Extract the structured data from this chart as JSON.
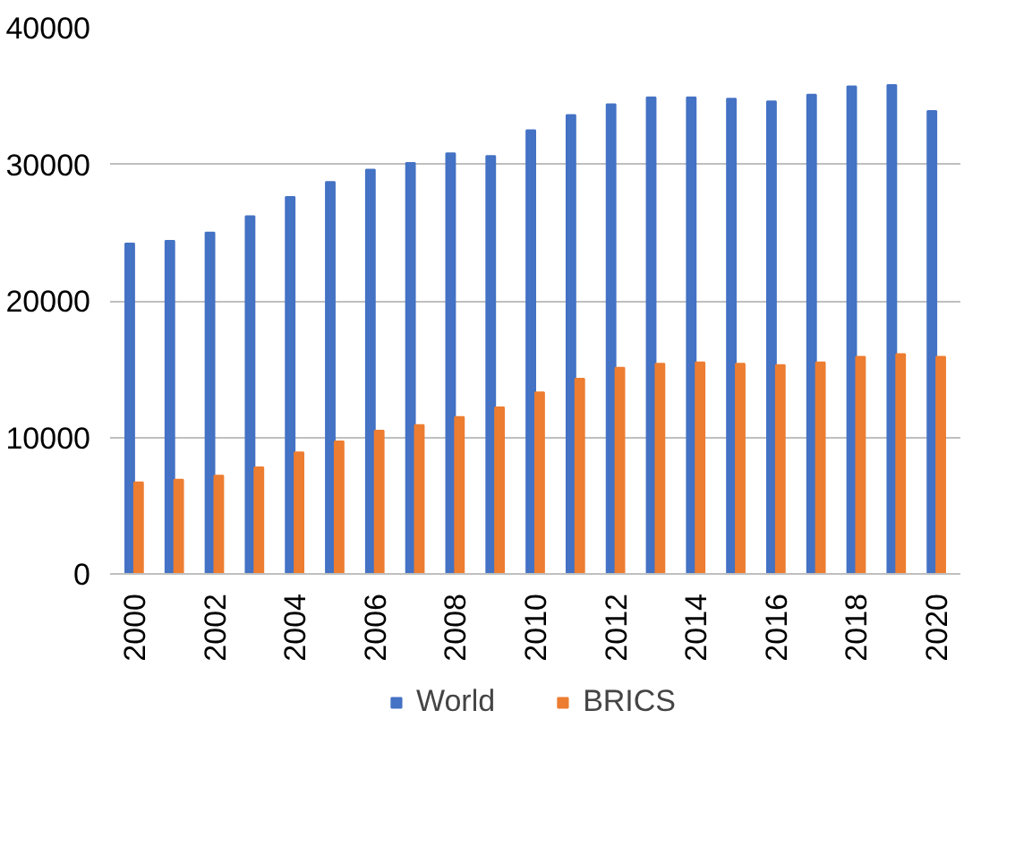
{
  "chart_data": {
    "type": "bar",
    "categories": [
      "2000",
      null,
      "2002",
      null,
      "2004",
      null,
      "2006",
      null,
      "2008",
      null,
      "2010",
      null,
      "2012",
      null,
      "2014",
      null,
      "2016",
      null,
      "2018",
      null,
      "2020"
    ],
    "series": [
      {
        "name": "World",
        "color": "#4472c4",
        "values": [
          24200,
          24400,
          25000,
          26200,
          27600,
          28700,
          29600,
          30100,
          30800,
          30600,
          32500,
          33600,
          34400,
          34900,
          34900,
          34800,
          34600,
          35100,
          35700,
          35800,
          33900
        ]
      },
      {
        "name": "BRICS",
        "color": "#ed7d31",
        "values": [
          6700,
          6900,
          7200,
          7800,
          8900,
          9700,
          10500,
          10900,
          11500,
          12200,
          13300,
          14300,
          15100,
          15400,
          15500,
          15400,
          15300,
          15500,
          15900,
          16100,
          15900
        ]
      }
    ],
    "ylim": [
      0,
      40000
    ],
    "yticks": [
      0,
      10000,
      20000,
      30000,
      40000
    ],
    "grid": "y",
    "legend": "bottom"
  }
}
